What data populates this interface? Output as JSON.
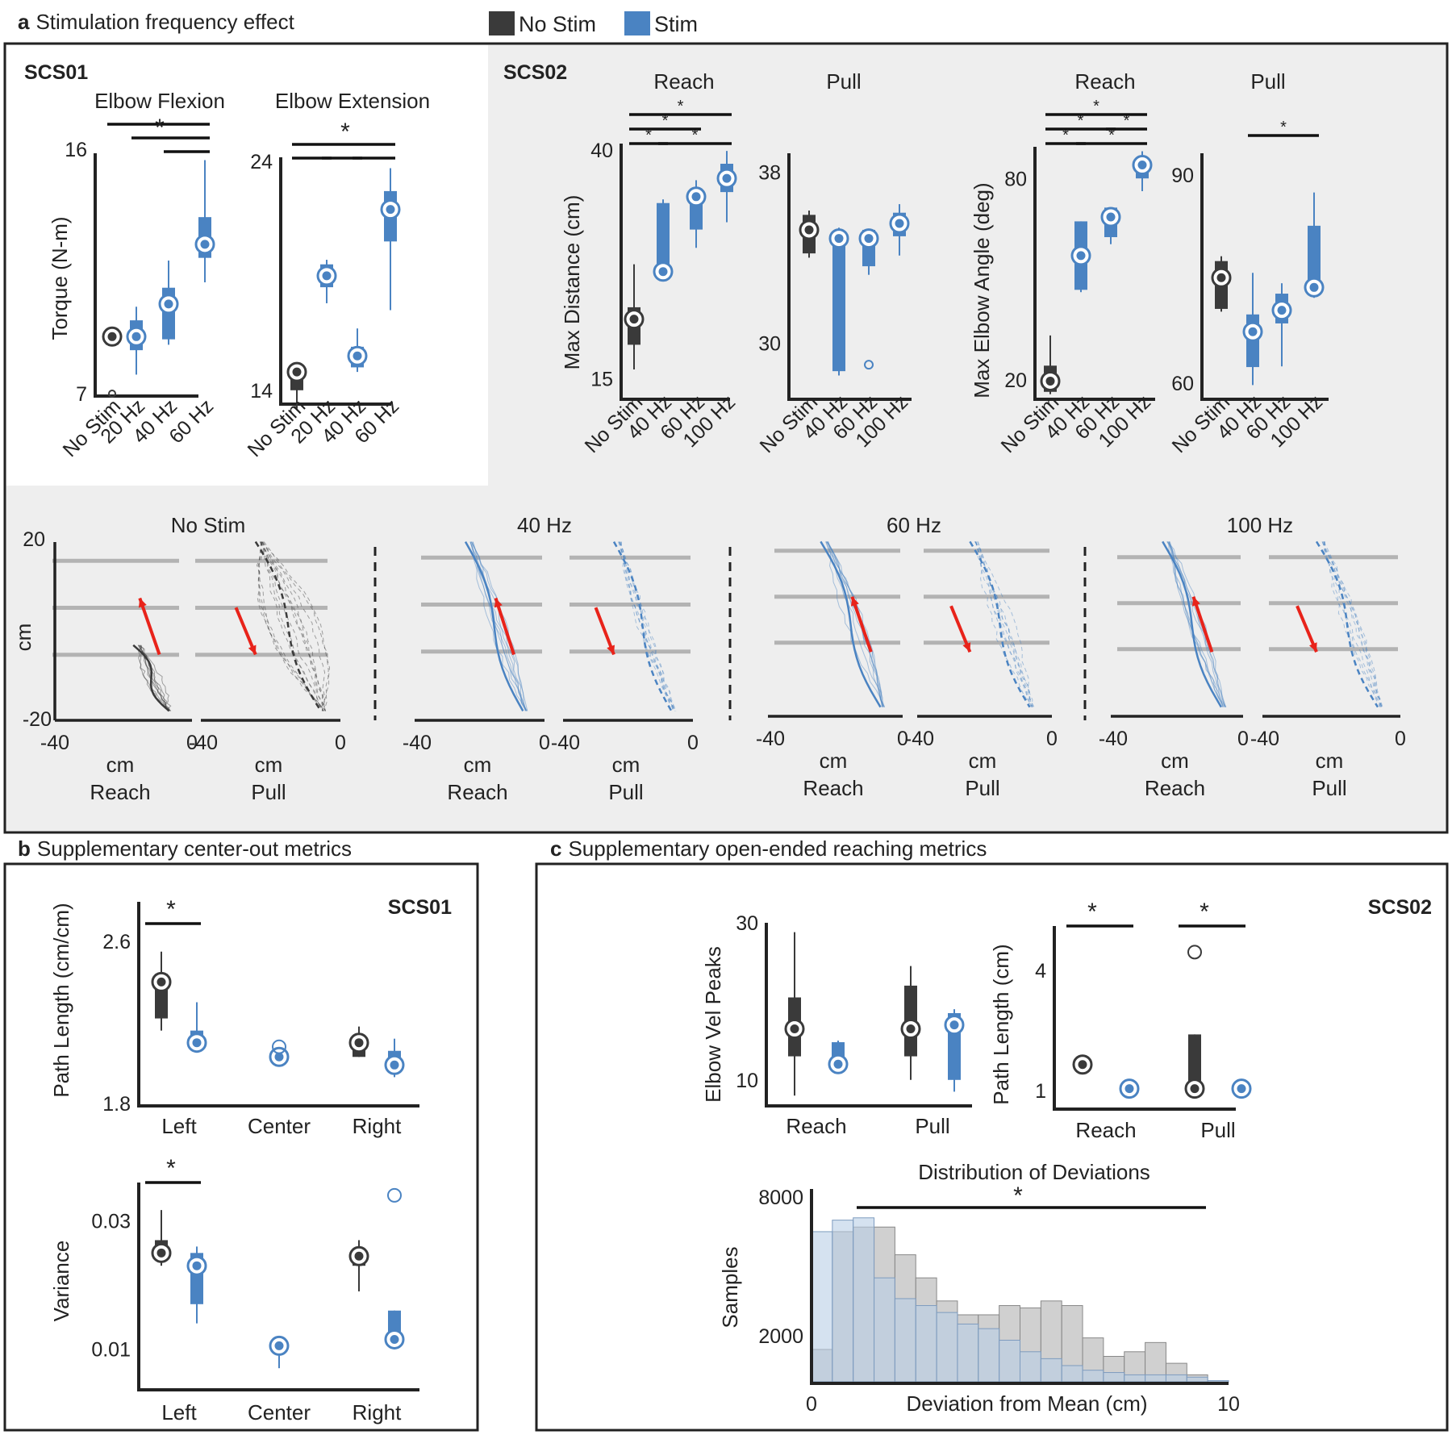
{
  "colors": {
    "nostim": "#3a3a3a",
    "stim": "#4a83c2",
    "panel_bg": "#eeeeee",
    "arrow": "#e8231a",
    "grid": "#b3b3b3"
  },
  "legend": {
    "nostim": "No Stim",
    "stim": "Stim"
  },
  "panel_a": {
    "letter": "a",
    "title": "Stimulation frequency effect",
    "scs01_label": "SCS01",
    "scs02_label": "SCS02"
  },
  "panel_b": {
    "letter": "b",
    "title": "Supplementary center-out metrics",
    "subject": "SCS01"
  },
  "panel_c": {
    "letter": "c",
    "title": "Supplementary open-ended reaching metrics",
    "subject": "SCS02"
  },
  "chart_data": [
    {
      "id": "elbow_flexion",
      "type": "box",
      "title": "Elbow Flexion",
      "ylabel": "Torque (N-m)",
      "ylim": [
        7,
        16
      ],
      "yticks": [
        7,
        16
      ],
      "categories": [
        "No Stim",
        "20 Hz",
        "40 Hz",
        "60 Hz"
      ],
      "boxes": [
        {
          "group": "nostim",
          "wlo": 8.8,
          "q1": 8.8,
          "med": 9.1,
          "q3": 9.1,
          "whi": 9.1,
          "outliers": [
            7
          ]
        },
        {
          "group": "stim",
          "wlo": 7.7,
          "q1": 8.6,
          "med": 9.1,
          "q3": 9.7,
          "whi": 10.2,
          "outliers": []
        },
        {
          "group": "stim",
          "wlo": 8.8,
          "q1": 9.0,
          "med": 10.3,
          "q3": 10.9,
          "whi": 11.9,
          "outliers": []
        },
        {
          "group": "stim",
          "wlo": 11.1,
          "q1": 12.0,
          "med": 12.5,
          "q3": 13.5,
          "whi": 15.6,
          "outliers": []
        }
      ],
      "sig": [
        {
          "from": 0,
          "to": 3,
          "level": 2
        },
        {
          "from": 1,
          "to": 3,
          "level": 1
        },
        {
          "from": 2,
          "to": 3,
          "level": 0
        }
      ],
      "sig_label": "*",
      "sig_star": [
        1.6,
        2
      ]
    },
    {
      "id": "elbow_extension",
      "type": "box",
      "title": "Elbow Extension",
      "ylim": [
        13.5,
        24
      ],
      "yticks": [
        14,
        24
      ],
      "categories": [
        "No Stim",
        "20 Hz",
        "40 Hz",
        "60 Hz"
      ],
      "boxes": [
        {
          "group": "nostim",
          "wlo": 13.2,
          "q1": 14.0,
          "med": 14.8,
          "q3": 15.0,
          "whi": 15.2,
          "outliers": []
        },
        {
          "group": "stim",
          "wlo": 17.8,
          "q1": 18.5,
          "med": 19.0,
          "q3": 19.5,
          "whi": 19.7,
          "outliers": []
        },
        {
          "group": "stim",
          "wlo": 14.8,
          "q1": 15.0,
          "med": 15.5,
          "q3": 15.9,
          "whi": 16.7,
          "outliers": []
        },
        {
          "group": "stim",
          "wlo": 17.5,
          "q1": 20.5,
          "med": 21.9,
          "q3": 22.7,
          "whi": 23.7,
          "outliers": []
        }
      ],
      "sig": [
        {
          "from": 0,
          "to": 1,
          "level": 0
        },
        {
          "from": 1,
          "to": 2,
          "level": 0
        },
        {
          "from": 2,
          "to": 3,
          "level": 0
        },
        {
          "from": 0,
          "to": 3,
          "level": 1
        }
      ],
      "sig_label": "*",
      "sig_star": [
        1.5,
        1
      ]
    },
    {
      "id": "reach_distance",
      "type": "box",
      "title": "Reach",
      "ylabel": "Max Distance (cm)",
      "ylim": [
        13,
        40
      ],
      "yticks": [
        15,
        40
      ],
      "categories": [
        "No Stim",
        "40 Hz",
        "60 Hz",
        "100 Hz"
      ],
      "boxes": [
        {
          "group": "nostim",
          "wlo": 16,
          "q1": 18.7,
          "med": 21.5,
          "q3": 22.8,
          "whi": 27.5,
          "outliers": []
        },
        {
          "group": "stim",
          "wlo": 26.0,
          "q1": 26.7,
          "med": 26.7,
          "q3": 34.2,
          "whi": 34.6,
          "outliers": []
        },
        {
          "group": "stim",
          "wlo": 29.3,
          "q1": 31.3,
          "med": 34.9,
          "q3": 35.2,
          "whi": 36.7,
          "outliers": []
        },
        {
          "group": "stim",
          "wlo": 32.1,
          "q1": 35.4,
          "med": 36.9,
          "q3": 38.5,
          "whi": 39.9,
          "outliers": []
        }
      ],
      "sig": [
        {
          "from": 0,
          "to": 1,
          "level": 0
        },
        {
          "from": 1,
          "to": 3,
          "level": 0
        },
        {
          "from": 0,
          "to": 2,
          "level": 1
        },
        {
          "from": 0,
          "to": 3,
          "level": 2
        }
      ],
      "sig_labels": [
        "*",
        "*",
        "*",
        "*"
      ],
      "sig_small": true
    },
    {
      "id": "pull_distance",
      "type": "box",
      "title": "Pull",
      "ylim": [
        27.5,
        38.5
      ],
      "yticks": [
        30,
        38
      ],
      "categories": [
        "No Stim",
        "40 Hz",
        "60 Hz",
        "100 Hz"
      ],
      "boxes": [
        {
          "group": "nostim",
          "wlo": 34.0,
          "q1": 34.2,
          "med": 35.3,
          "q3": 36.0,
          "whi": 36.2,
          "outliers": []
        },
        {
          "group": "stim",
          "wlo": 28.5,
          "q1": 28.7,
          "med": 34.9,
          "q3": 35.2,
          "whi": 35.4,
          "outliers": []
        },
        {
          "group": "stim",
          "wlo": 33.2,
          "q1": 33.6,
          "med": 34.9,
          "q3": 35.3,
          "whi": 35.3,
          "outliers": [
            29.0
          ]
        },
        {
          "group": "stim",
          "wlo": 34.1,
          "q1": 35.0,
          "med": 35.6,
          "q3": 36.1,
          "whi": 36.5,
          "outliers": []
        }
      ],
      "sig": []
    },
    {
      "id": "reach_angle",
      "type": "box",
      "title": "Reach",
      "ylabel": "Max Elbow Angle (deg)",
      "ylim": [
        15,
        90
      ],
      "yticks": [
        20,
        80
      ],
      "categories": [
        "No Stim",
        "40 Hz",
        "60 Hz",
        "100 Hz"
      ],
      "boxes": [
        {
          "group": "nostim",
          "wlo": 15.8,
          "q1": 16.5,
          "med": 19.7,
          "q3": 24.3,
          "whi": 33.3,
          "outliers": []
        },
        {
          "group": "stim",
          "wlo": 46.2,
          "q1": 46.9,
          "med": 57.1,
          "q3": 67.3,
          "whi": 67.3,
          "outliers": []
        },
        {
          "group": "stim",
          "wlo": 60.5,
          "q1": 62.6,
          "med": 68.6,
          "q3": 71.4,
          "whi": 71.4,
          "outliers": []
        },
        {
          "group": "stim",
          "wlo": 76.3,
          "q1": 80.1,
          "med": 84.1,
          "q3": 85.8,
          "whi": 88.2,
          "outliers": []
        }
      ],
      "sig": [
        {
          "from": 0,
          "to": 1,
          "level": 0
        },
        {
          "from": 1,
          "to": 3,
          "level": 0
        },
        {
          "from": 0,
          "to": 2,
          "level": 1
        },
        {
          "from": 2,
          "to": 3,
          "level": 1
        },
        {
          "from": 0,
          "to": 3,
          "level": 2
        }
      ],
      "sig_labels": [
        "*",
        "*",
        "*",
        "*",
        "*"
      ],
      "sig_small": true
    },
    {
      "id": "pull_angle",
      "type": "box",
      "title": "Pull",
      "ylim": [
        58,
        92
      ],
      "yticks": [
        60,
        90
      ],
      "categories": [
        "No Stim",
        "40 Hz",
        "60 Hz",
        "100 Hz"
      ],
      "boxes": [
        {
          "group": "nostim",
          "wlo": 70.3,
          "q1": 70.7,
          "med": 75.2,
          "q3": 77.6,
          "whi": 78.3,
          "outliers": []
        },
        {
          "group": "stim",
          "wlo": 59.7,
          "q1": 62.3,
          "med": 67.4,
          "q3": 69.9,
          "whi": 75.9,
          "outliers": []
        },
        {
          "group": "stim",
          "wlo": 62.4,
          "q1": 68.6,
          "med": 70.5,
          "q3": 72.9,
          "whi": 74.4,
          "outliers": []
        },
        {
          "group": "stim",
          "wlo": 72.3,
          "q1": 73.8,
          "med": 73.8,
          "q3": 82.7,
          "whi": 87.5,
          "outliers": []
        }
      ],
      "sig": [
        {
          "from": 1,
          "to": 3,
          "level": 0
        }
      ],
      "sig_labels": [
        "*"
      ],
      "sig_small": true
    },
    {
      "id": "path_length_b",
      "type": "box",
      "ylabel": "Path Length (cm/cm)",
      "ylim": [
        1.8,
        2.8
      ],
      "yticks": [
        1.8,
        2.6
      ],
      "ytick_labels": [
        "1.8",
        "2.6"
      ],
      "categories": [
        "Left",
        "Center",
        "Right"
      ],
      "boxes": [
        {
          "group": "nostim",
          "cat": 0,
          "wlo": 2.16,
          "q1": 2.22,
          "med": 2.4,
          "q3": 2.44,
          "whi": 2.55
        },
        {
          "group": "stim",
          "cat": 0,
          "wlo": 2.06,
          "q1": 2.08,
          "med": 2.1,
          "q3": 2.16,
          "whi": 2.3
        },
        {
          "group": "stim",
          "cat": 1,
          "wlo": 2.03,
          "q1": 2.03,
          "med": 2.03,
          "q3": 2.05,
          "whi": 2.05,
          "outliers": [
            2.08
          ]
        },
        {
          "group": "nostim",
          "cat": 2,
          "wlo": 2.03,
          "q1": 2.03,
          "med": 2.1,
          "q3": 2.1,
          "whi": 2.18
        },
        {
          "group": "stim",
          "cat": 2,
          "wlo": 1.93,
          "q1": 1.97,
          "med": 1.99,
          "q3": 2.06,
          "whi": 2.12
        }
      ],
      "sig": [
        {
          "cat": 0
        }
      ],
      "sig_label": "*"
    },
    {
      "id": "variance_b",
      "type": "box",
      "ylabel": "Variance",
      "ylim": [
        0.004,
        0.036
      ],
      "yticks": [
        0.01,
        0.03
      ],
      "ytick_labels": [
        "0.01",
        "0.03"
      ],
      "categories": [
        "Left",
        "Center",
        "Right"
      ],
      "boxes": [
        {
          "group": "nostim",
          "cat": 0,
          "wlo": 0.023,
          "q1": 0.025,
          "med": 0.025,
          "q3": 0.027,
          "whi": 0.0317
        },
        {
          "group": "stim",
          "cat": 0,
          "wlo": 0.014,
          "q1": 0.017,
          "med": 0.023,
          "q3": 0.025,
          "whi": 0.026
        },
        {
          "group": "stim",
          "cat": 1,
          "wlo": 0.007,
          "q1": 0.01,
          "med": 0.0105,
          "q3": 0.011,
          "whi": 0.011
        },
        {
          "group": "nostim",
          "cat": 2,
          "wlo": 0.019,
          "q1": 0.023,
          "med": 0.0245,
          "q3": 0.025,
          "whi": 0.027
        },
        {
          "group": "stim",
          "cat": 2,
          "wlo": 0.011,
          "q1": 0.0115,
          "med": 0.0115,
          "q3": 0.016,
          "whi": 0.016,
          "outliers": [
            0.034
          ]
        }
      ],
      "sig": [
        {
          "cat": 0
        }
      ],
      "sig_label": "*"
    },
    {
      "id": "elbow_vel_peaks",
      "type": "box",
      "ylabel": "Elbow Vel Peaks",
      "ylim": [
        7,
        30
      ],
      "yticks": [
        10,
        30
      ],
      "categories": [
        "Reach",
        "Pull"
      ],
      "boxes": [
        {
          "group": "nostim",
          "cat": 0,
          "wlo": 8.0,
          "q1": 13.0,
          "med": 16.5,
          "q3": 20.5,
          "whi": 28.8
        },
        {
          "group": "stim",
          "cat": 0,
          "wlo": 12.0,
          "q1": 12.0,
          "med": 12.0,
          "q3": 14.8,
          "whi": 15.0
        },
        {
          "group": "nostim",
          "cat": 1,
          "wlo": 10.0,
          "q1": 13.0,
          "med": 16.5,
          "q3": 22.0,
          "whi": 24.5
        },
        {
          "group": "stim",
          "cat": 1,
          "wlo": 8.5,
          "q1": 10.0,
          "med": 17.0,
          "q3": 18.5,
          "whi": 19.0
        }
      ],
      "sig": []
    },
    {
      "id": "path_length_c",
      "type": "box",
      "ylabel": "Path Length (cm)",
      "ylim": [
        0.6,
        5.1
      ],
      "yticks": [
        1,
        4
      ],
      "categories": [
        "Reach",
        "Pull"
      ],
      "boxes": [
        {
          "group": "nostim",
          "cat": 0,
          "wlo": 1.55,
          "q1": 1.65,
          "med": 1.65,
          "q3": 1.75,
          "whi": 1.75
        },
        {
          "group": "stim",
          "cat": 0,
          "wlo": 1.05,
          "q1": 1.05,
          "med": 1.05,
          "q3": 1.05,
          "whi": 1.05
        },
        {
          "group": "nostim",
          "cat": 1,
          "wlo": 1.05,
          "q1": 1.05,
          "med": 1.05,
          "q3": 2.4,
          "whi": 2.4,
          "outliers": [
            4.45
          ]
        },
        {
          "group": "stim",
          "cat": 1,
          "wlo": 1.05,
          "q1": 1.05,
          "med": 1.05,
          "q3": 1.05,
          "whi": 1.05
        }
      ],
      "sig": [
        {
          "cat": 0
        },
        {
          "cat": 1
        }
      ],
      "sig_label": "*"
    },
    {
      "id": "deviation_hist",
      "type": "histogram",
      "title": "Distribution of Deviations",
      "xlabel": "Deviation from Mean (cm)",
      "ylabel": "Samples",
      "xlim": [
        0,
        10
      ],
      "xticks": [
        0,
        10
      ],
      "ylim": [
        0,
        8000
      ],
      "yticks": [
        2000,
        8000
      ],
      "bin_width": 0.5,
      "nostim": [
        1400,
        6500,
        6700,
        6700,
        5500,
        4500,
        3500,
        2900,
        2900,
        3300,
        3200,
        3500,
        3300,
        1900,
        1100,
        1300,
        1700,
        800,
        300,
        0
      ],
      "stim": [
        6500,
        7000,
        7100,
        4500,
        3600,
        3300,
        3000,
        2500,
        2300,
        1800,
        1300,
        1000,
        700,
        500,
        400,
        300,
        300,
        300,
        200,
        50
      ],
      "sig_label": "*"
    },
    {
      "id": "trajectories",
      "type": "line",
      "xlabel": "cm",
      "ylabel": "cm",
      "xlim": [
        -40,
        0
      ],
      "ylim": [
        -20,
        20
      ],
      "xticks": [
        -40,
        0
      ],
      "yticks": [
        -20,
        20
      ],
      "conditions": [
        "No Stim",
        "40 Hz",
        "60 Hz",
        "100 Hz"
      ],
      "movements": [
        "Reach",
        "Pull"
      ]
    }
  ]
}
